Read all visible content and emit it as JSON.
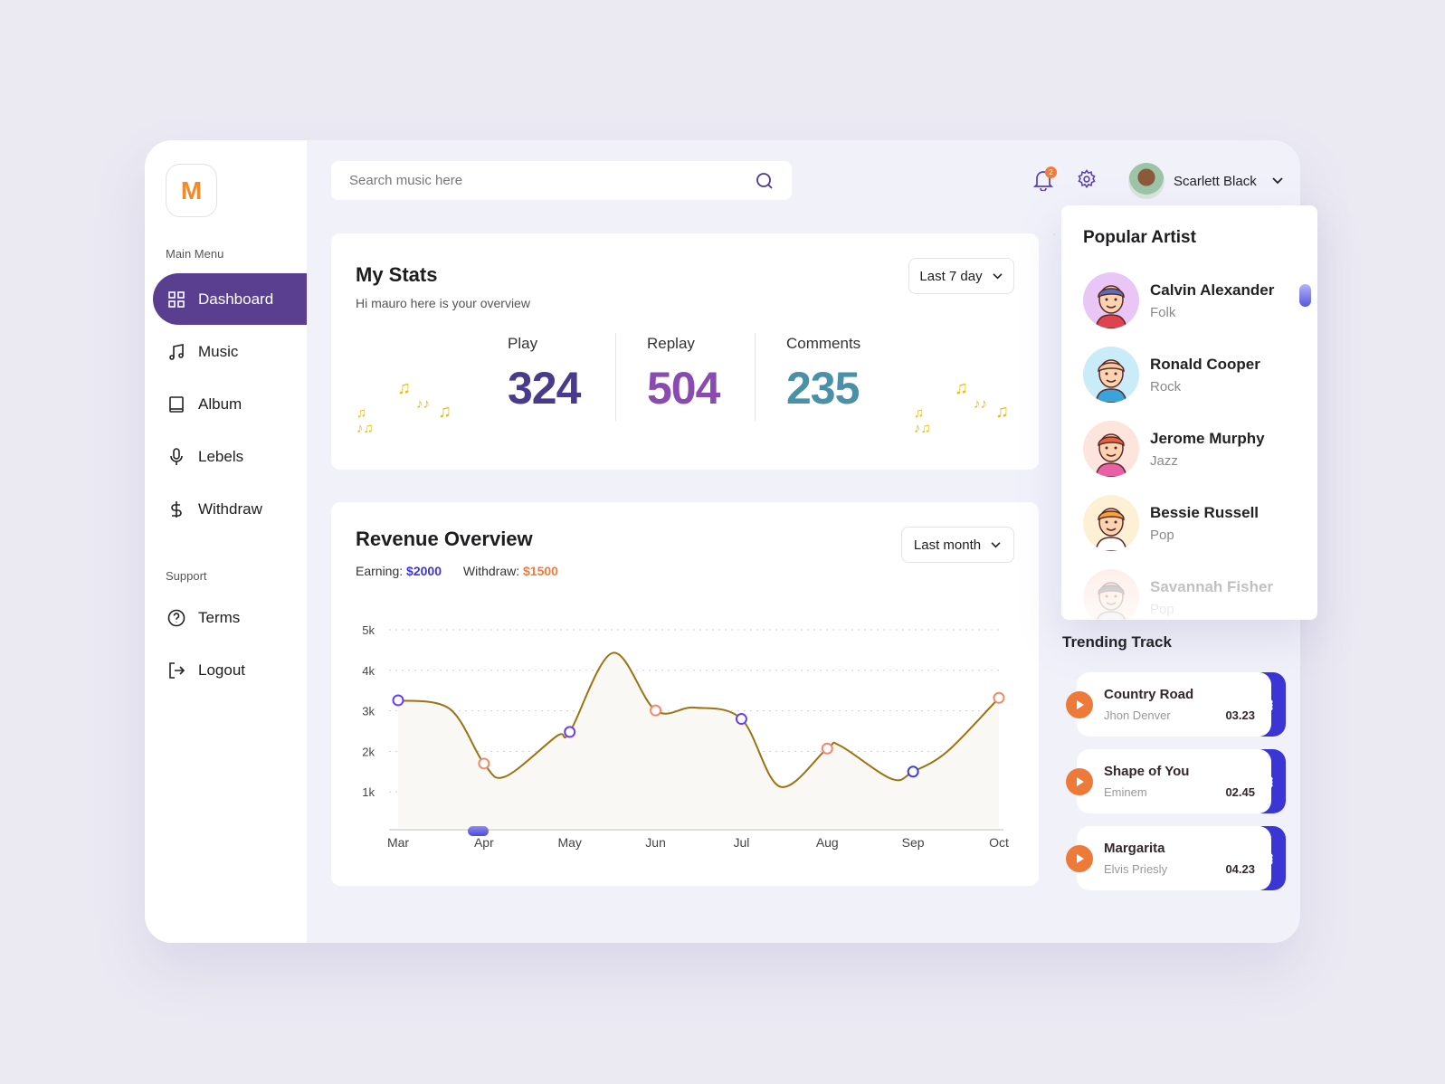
{
  "logo": "M",
  "sidebar": {
    "main_menu_label": "Main Menu",
    "items": [
      {
        "label": "Dashboard",
        "icon": "grid-icon",
        "active": true
      },
      {
        "label": "Music",
        "icon": "music-note-icon"
      },
      {
        "label": "Album",
        "icon": "book-icon"
      },
      {
        "label": "Lebels",
        "icon": "microphone-icon"
      },
      {
        "label": "Withdraw",
        "icon": "dollar-icon"
      }
    ],
    "support_label": "Support",
    "support_items": [
      {
        "label": "Terms",
        "icon": "help-circle-icon"
      },
      {
        "label": "Logout",
        "icon": "logout-icon"
      }
    ]
  },
  "header": {
    "search_placeholder": "Search music here",
    "notification_count": "2",
    "user_name": "Scarlett Black"
  },
  "stats": {
    "title": "My Stats",
    "subtitle": "Hi mauro here is your overview",
    "range": "Last 7 day",
    "items": [
      {
        "label": "Play",
        "value": "324",
        "color": "#4a3a8c"
      },
      {
        "label": "Replay",
        "value": "504",
        "color": "#8a4bb0"
      },
      {
        "label": "Comments",
        "value": "235",
        "color": "#4a90a8"
      }
    ]
  },
  "revenue": {
    "title": "Revenue Overview",
    "range": "Last month",
    "earning_label": "Earning:",
    "earning_value": "$2000",
    "withdraw_label": "Withdraw:",
    "withdraw_value": "$1500",
    "earning_color": "#3b35e0",
    "withdraw_color": "#f47a3a"
  },
  "chart_data": {
    "type": "line",
    "categories": [
      "Mar",
      "Apr",
      "May",
      "Jun",
      "Jul",
      "Aug",
      "Sep",
      "Oct"
    ],
    "yticks": [
      "1k",
      "2k",
      "3k",
      "4k",
      "5k"
    ],
    "ylim": [
      0,
      5
    ],
    "grid": true,
    "markers": [
      {
        "x": "Mar",
        "y": 3.26,
        "color": "#6a3df5"
      },
      {
        "x": "Apr",
        "y": 1.7,
        "color": "#f4886a"
      },
      {
        "x": "May",
        "y": 2.48,
        "color": "#6a3df5"
      },
      {
        "x": "Jun",
        "y": 3.01,
        "color": "#f4886a"
      },
      {
        "x": "Jul",
        "y": 2.8,
        "color": "#6a3df5"
      },
      {
        "x": "Aug",
        "y": 2.07,
        "color": "#f4886a"
      },
      {
        "x": "Sep",
        "y": 1.5,
        "color": "#3d3de0"
      },
      {
        "x": "Oct",
        "y": 3.32,
        "color": "#f4886a"
      }
    ],
    "curve": [
      [
        0,
        3.26
      ],
      [
        0.6,
        3.05
      ],
      [
        1,
        1.7
      ],
      [
        1.25,
        1.38
      ],
      [
        1.85,
        2.38
      ],
      [
        2,
        2.48
      ],
      [
        2.5,
        4.43
      ],
      [
        3,
        3.01
      ],
      [
        3.45,
        3.08
      ],
      [
        4,
        2.8
      ],
      [
        4.45,
        1.13
      ],
      [
        5,
        2.07
      ],
      [
        5.15,
        2.14
      ],
      [
        5.75,
        1.32
      ],
      [
        6,
        1.5
      ],
      [
        6.4,
        2.0
      ],
      [
        7,
        3.32
      ]
    ],
    "line_color": "#9a7412"
  },
  "popular": {
    "title": "Popular Artist",
    "artists": [
      {
        "name": "Calvin Alexander",
        "genre": "Folk",
        "bg": "#e9c6f6",
        "hair": "#5b6fb8",
        "shirt": "#e0434f"
      },
      {
        "name": "Ronald Cooper",
        "genre": "Rock",
        "bg": "#c9ecf8",
        "hair": "#f2c9a0",
        "shirt": "#3ba3dc"
      },
      {
        "name": "Jerome Murphy",
        "genre": "Jazz",
        "bg": "#fde4dc",
        "hair": "#e8623f",
        "shirt": "#ea5fa6"
      },
      {
        "name": "Bessie Russell",
        "genre": "Pop",
        "bg": "#fdf0d5",
        "hair": "#f5a33a",
        "shirt": "#ffffff"
      },
      {
        "name": "Savannah Fisher",
        "genre": "Pop",
        "bg": "#fbd5c8",
        "hair": "#555555",
        "shirt": "#cccccc"
      }
    ]
  },
  "trending": {
    "title": "Trending Track",
    "tracks": [
      {
        "name": "Country Road",
        "artist": "Jhon Denver",
        "duration": "03.23"
      },
      {
        "name": "Shape of You",
        "artist": "Eminem",
        "duration": "02.45"
      },
      {
        "name": "Margarita",
        "artist": "Elvis Priesly",
        "duration": "04.23"
      }
    ]
  }
}
